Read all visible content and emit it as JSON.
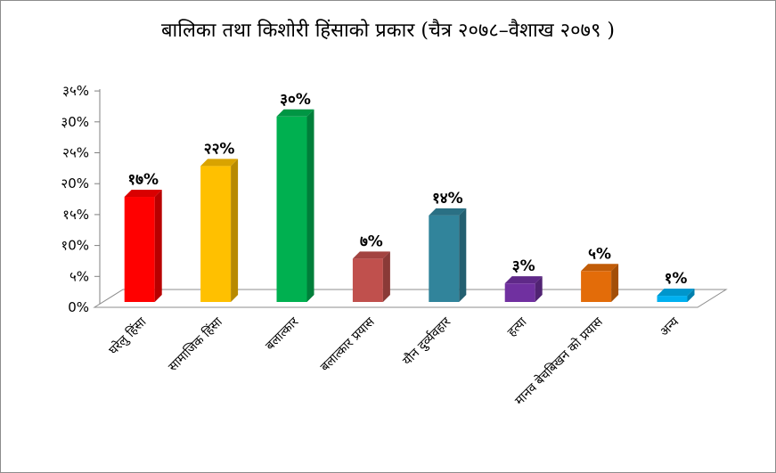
{
  "chart_data": {
    "type": "bar",
    "title": "बालिका तथा किशोरी हिंसाको प्रकार (चैत्र २०७८–वैशाख २०७९ )",
    "categories": [
      "घरेलु हिंसा",
      "सामाजिक हिंसा",
      "बलात्कार",
      "बलात्कार प्रयास",
      "यौन दुर्व्यवहार",
      "हत्या",
      "मानव बेचबिखन को प्रयास",
      "अन्य"
    ],
    "values": [
      17,
      22,
      30,
      7,
      14,
      3,
      5,
      1
    ],
    "value_labels": [
      "१७%",
      "२२%",
      "३०%",
      "७%",
      "१४%",
      "३%",
      "५%",
      "१%"
    ],
    "colors": [
      "#ff0000",
      "#ffc000",
      "#00b050",
      "#c0504d",
      "#31849b",
      "#7030a0",
      "#e36c09",
      "#00b0f0"
    ],
    "ylim": [
      0,
      35
    ],
    "yticks": [
      0,
      5,
      10,
      15,
      20,
      25,
      30,
      35
    ],
    "ytick_labels": [
      "0%",
      "५%",
      "१0%",
      "१५%",
      "२0%",
      "२५%",
      "३0%",
      "३५%"
    ],
    "xlabel": "",
    "ylabel": "",
    "grid": false,
    "style": "3d-column"
  }
}
